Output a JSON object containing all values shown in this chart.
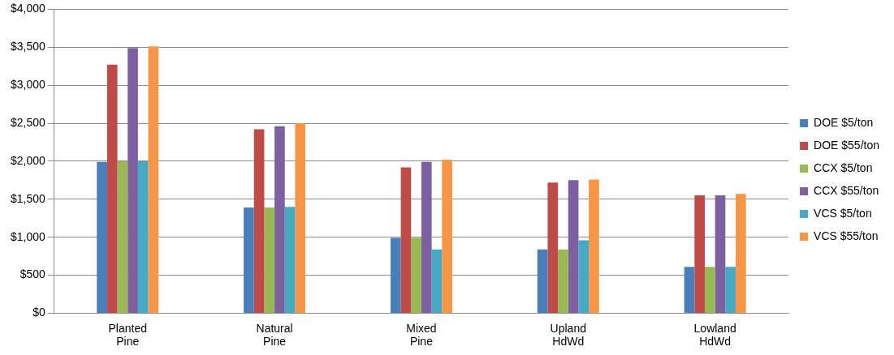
{
  "chart_data": {
    "type": "bar",
    "categories": [
      "Planted Pine",
      "Natural Pine",
      "Mixed Pine",
      "Upland HdWd",
      "Lowland HdWd"
    ],
    "series": [
      {
        "name": "DOE $5/ton",
        "color": "#4a7ebb",
        "values": [
          1990,
          1390,
          990,
          840,
          610
        ]
      },
      {
        "name": "DOE $55/ton",
        "color": "#be4b48",
        "values": [
          3270,
          2420,
          1920,
          1720,
          1550
        ]
      },
      {
        "name": "CCX $5/ton",
        "color": "#98b954",
        "values": [
          2000,
          1390,
          990,
          840,
          610
        ]
      },
      {
        "name": "CCX $55/ton",
        "color": "#7d60a0",
        "values": [
          3490,
          2460,
          1990,
          1750,
          1550
        ]
      },
      {
        "name": "VCS $5/ton",
        "color": "#46aac5",
        "values": [
          2000,
          1400,
          840,
          960,
          610
        ]
      },
      {
        "name": "VCS $55/ton",
        "color": "#f79646",
        "values": [
          3510,
          2500,
          2020,
          1760,
          1570
        ]
      }
    ],
    "ylim": [
      0,
      4000
    ],
    "yticks": [
      {
        "value": 0,
        "label": "$0"
      },
      {
        "value": 500,
        "label": "$500"
      },
      {
        "value": 1000,
        "label": "$1,000"
      },
      {
        "value": 1500,
        "label": "$1,500"
      },
      {
        "value": 2000,
        "label": "$2,000"
      },
      {
        "value": 2500,
        "label": "$2,500"
      },
      {
        "value": 3000,
        "label": "$3,000"
      },
      {
        "value": 3500,
        "label": "$3,500"
      },
      {
        "value": 4000,
        "label": "$4,000"
      }
    ],
    "grid": "y",
    "legend": "right"
  }
}
